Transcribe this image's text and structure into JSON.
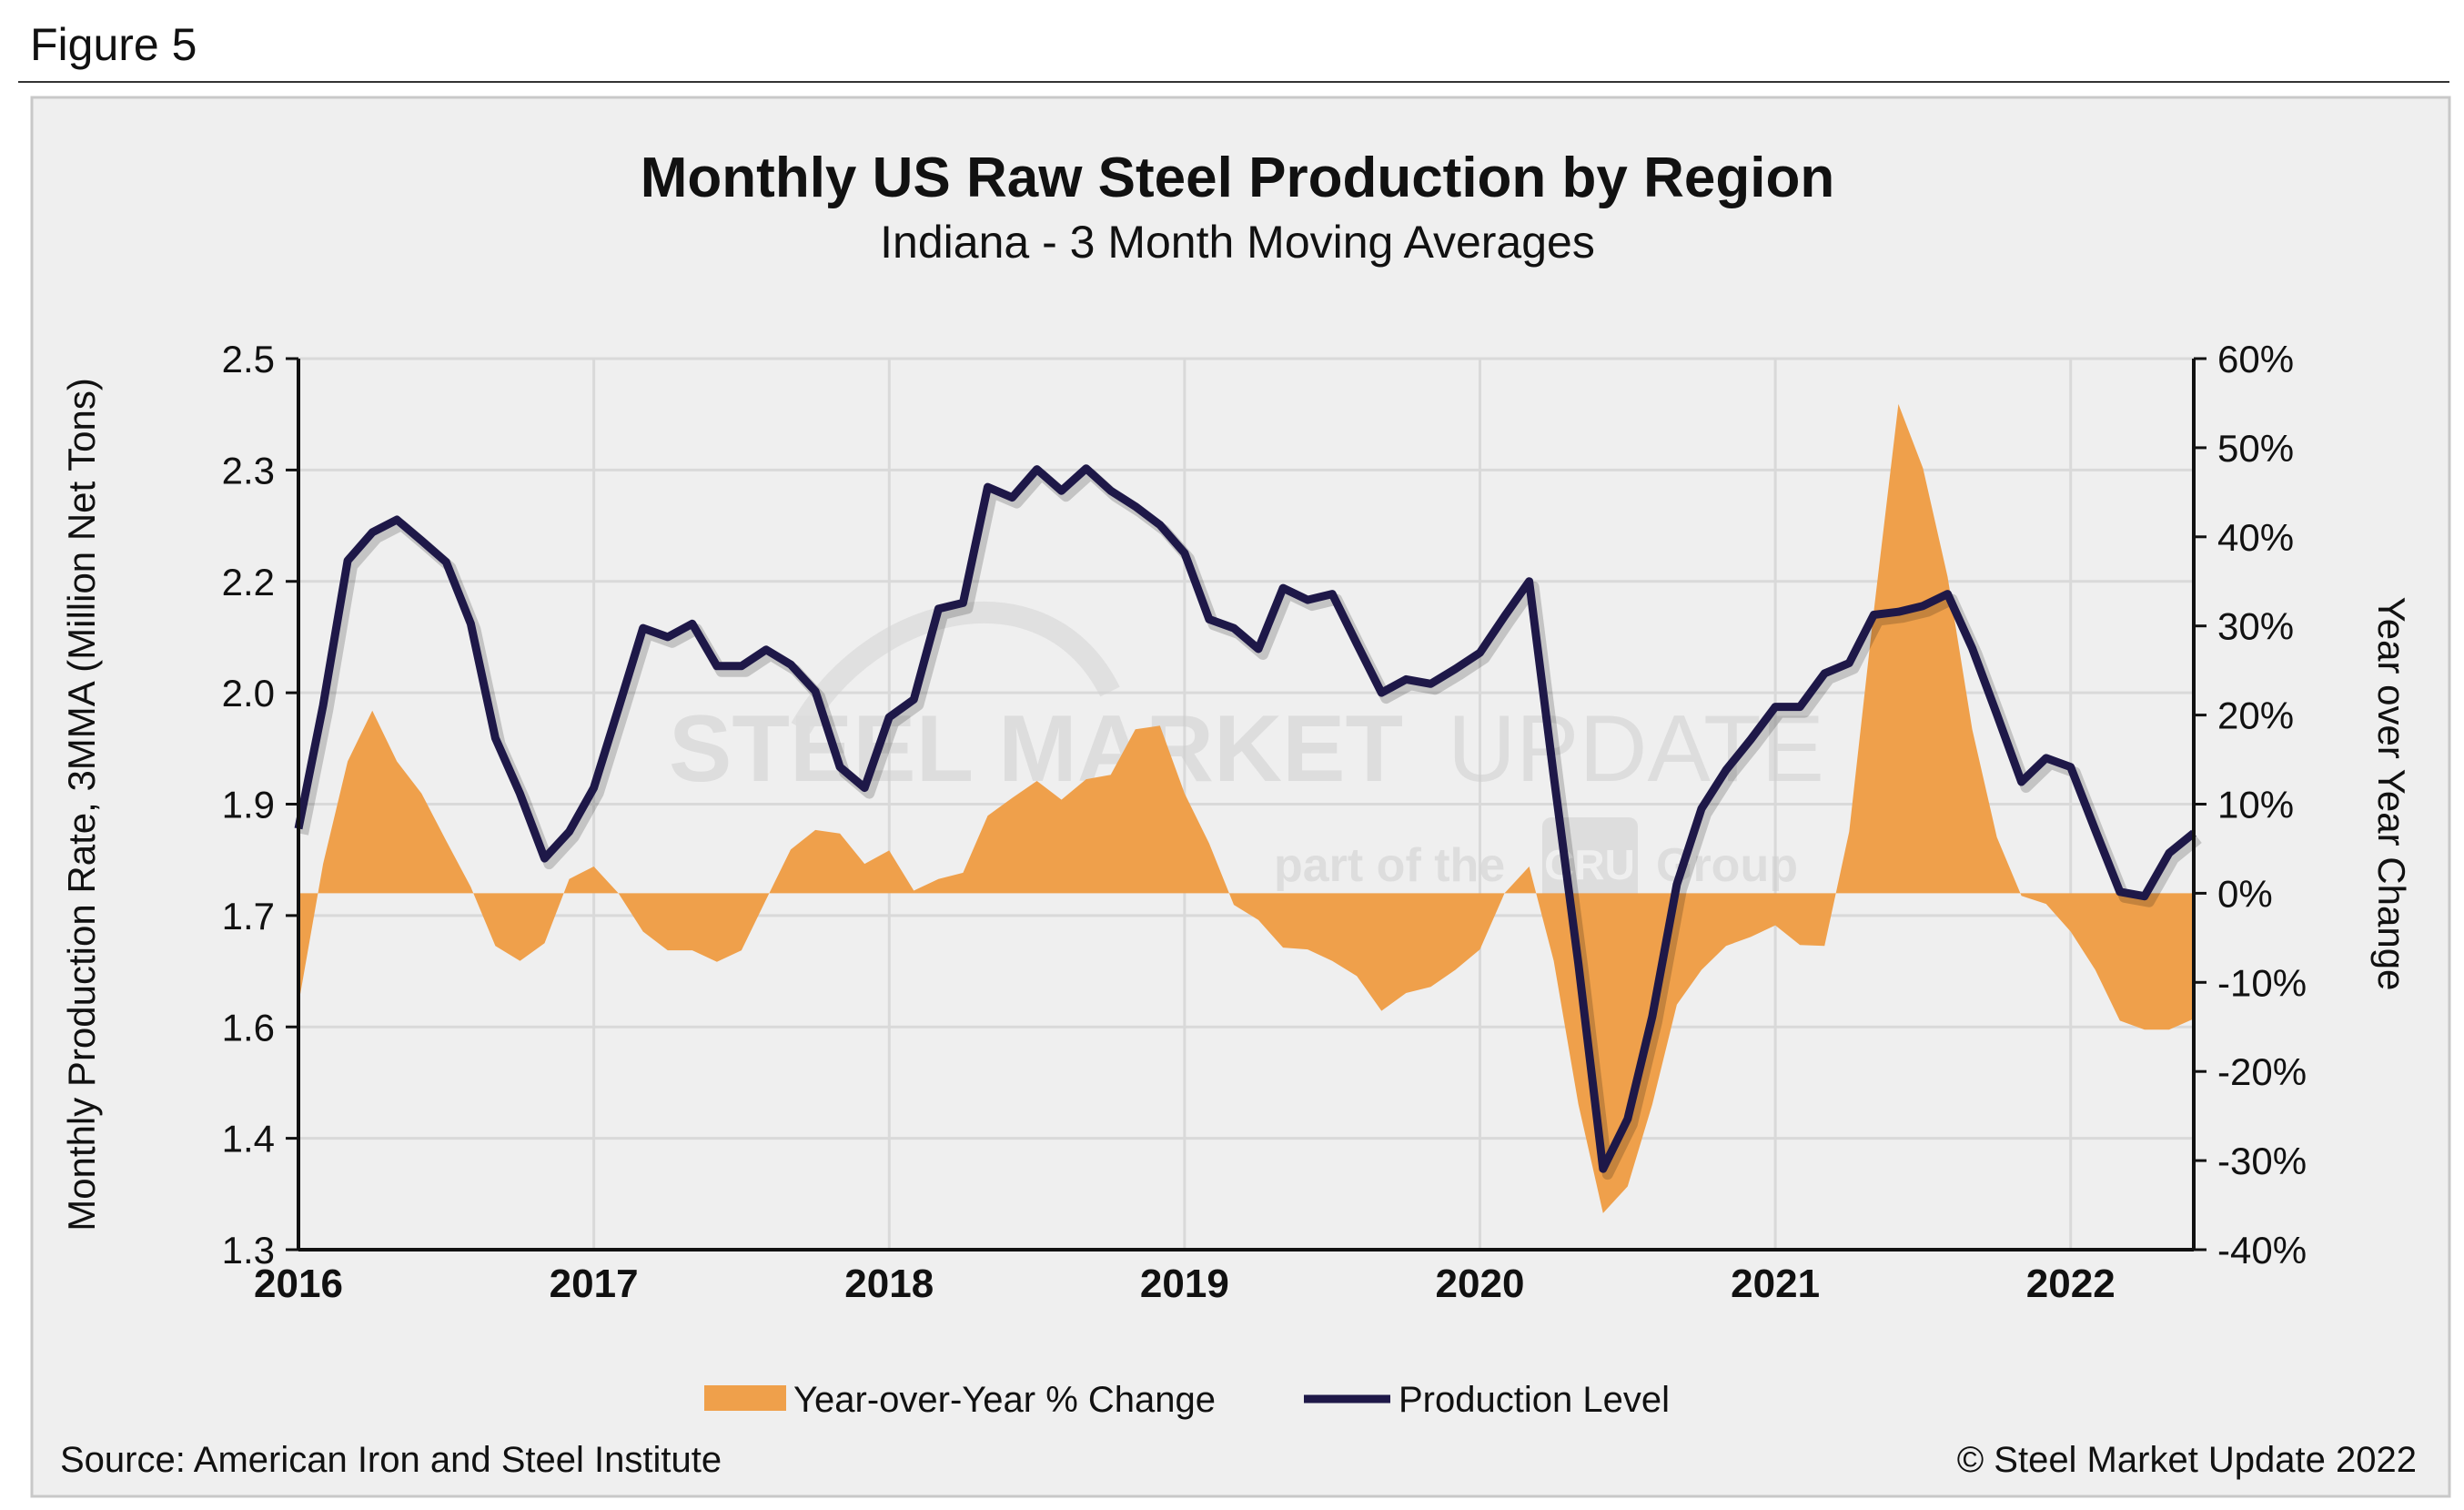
{
  "figure_label": "Figure 5",
  "watermark": {
    "line1_bold": "STEEL MARKET",
    "line1_light": "UPDATE",
    "line2": "part of the",
    "badge": "CRU",
    "line2_end": "Group"
  },
  "footer": {
    "source": "Source: American Iron and Steel Institute",
    "copyright": "© Steel Market Update 2022"
  },
  "colors": {
    "area": "#EFA04B",
    "line": "#1E1848",
    "panel": "#EFEFEF",
    "grid": "#D9D9D9"
  },
  "chart_data": {
    "type": "line+area",
    "title": "Monthly US Raw Steel Production by Region",
    "subtitle": "Indiana - 3 Month Moving Averages",
    "ylabel": "Monthly Production Rate, 3MMA (Million Net Tons)",
    "y2label": "Year over Year Change",
    "ylim": [
      1.3,
      2.5
    ],
    "y2lim": [
      -40,
      60
    ],
    "yticks": [
      "2.5",
      "2.3",
      "2.2",
      "2.0",
      "1.9",
      "1.7",
      "1.6",
      "1.4",
      "1.3"
    ],
    "y2ticks": [
      "60%",
      "50%",
      "40%",
      "30%",
      "20%",
      "10%",
      "0%",
      "-10%",
      "-20%",
      "-30%",
      "-40%"
    ],
    "xticks": [
      "2016",
      "2017",
      "2018",
      "2019",
      "2020",
      "2021",
      "2022"
    ],
    "x_start": "2016-01",
    "x_end": "2022-06",
    "grid": true,
    "legend_position": "bottom",
    "series": [
      {
        "name": "Year-over-Year % Change",
        "type": "area",
        "axis": "right",
        "unit": "%",
        "values": [
          -12.5,
          3.3,
          14.8,
          20.5,
          14.8,
          11.2,
          5.9,
          0.7,
          -5.9,
          -7.6,
          -5.6,
          1.6,
          3.0,
          0,
          -4.3,
          -6.4,
          -6.4,
          -7.7,
          -6.4,
          -0.7,
          4.9,
          7.1,
          6.7,
          3.3,
          4.8,
          0.3,
          1.6,
          2.3,
          8.7,
          10.7,
          12.6,
          10.5,
          12.8,
          13.3,
          18.4,
          18.8,
          11.2,
          5.6,
          -1.3,
          -3.0,
          -6.1,
          -6.3,
          -7.6,
          -9.3,
          -13.2,
          -11.2,
          -10.5,
          -8.6,
          -6.3,
          0,
          3.0,
          -7.6,
          -23.7,
          -35.9,
          -32.9,
          -23.7,
          -12.5,
          -8.6,
          -5.9,
          -4.9,
          -3.6,
          -5.8,
          -5.9,
          6.9,
          31.6,
          54.9,
          47.7,
          35.5,
          18.4,
          6.3,
          -0.3,
          -1.2,
          -4.3,
          -8.6,
          -14.3,
          -15.3,
          -15.3,
          -14.1
        ]
      },
      {
        "name": "Production Level",
        "type": "line",
        "axis": "left",
        "unit": "Million Net Tons",
        "values": [
          1.867,
          2.033,
          2.228,
          2.266,
          2.283,
          2.255,
          2.226,
          2.143,
          1.989,
          1.914,
          1.827,
          1.863,
          1.922,
          2.029,
          2.137,
          2.125,
          2.143,
          2.086,
          2.086,
          2.108,
          2.088,
          2.052,
          1.95,
          1.922,
          2.017,
          2.041,
          2.163,
          2.171,
          2.327,
          2.313,
          2.351,
          2.322,
          2.352,
          2.322,
          2.301,
          2.276,
          2.238,
          2.149,
          2.137,
          2.109,
          2.191,
          2.175,
          2.183,
          2.116,
          2.05,
          2.068,
          2.062,
          2.082,
          2.104,
          2.153,
          2.2,
          1.938,
          1.685,
          1.409,
          1.476,
          1.614,
          1.792,
          1.894,
          1.946,
          1.987,
          2.031,
          2.031,
          2.076,
          2.09,
          2.155,
          2.159,
          2.167,
          2.183,
          2.11,
          2.021,
          1.93,
          1.962,
          1.95,
          1.865,
          1.782,
          1.776,
          1.834,
          1.861
        ]
      }
    ]
  }
}
